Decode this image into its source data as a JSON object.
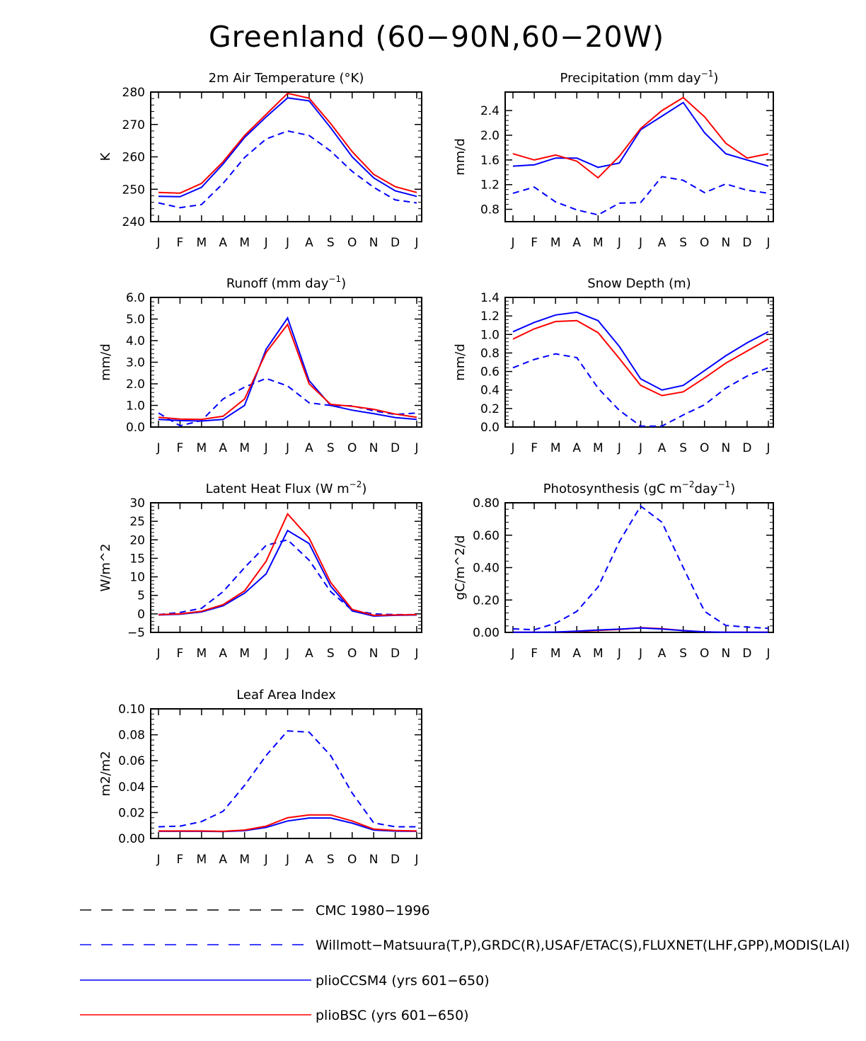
{
  "title": "Greenland (60−90N,60−20W)",
  "chart_data": [
    {
      "id": "temp",
      "type": "line",
      "title": "2m Air Temperature (°K)",
      "ylabel": "K",
      "ylim": [
        240,
        280
      ],
      "yticks": [
        240,
        250,
        260,
        270,
        280
      ],
      "yticklabels": [
        "240",
        "250",
        "260",
        "270",
        "280"
      ],
      "categories": [
        "J",
        "F",
        "M",
        "A",
        "M",
        "J",
        "J",
        "A",
        "S",
        "O",
        "N",
        "D",
        "J"
      ],
      "series": [
        {
          "name": "Willmott-Matsuura(T,P),GRDC(R),USAF/ETAC(S),FLUXNET(LHF,GPP),MODIS(LAI)",
          "style": "dashed",
          "color": "#0000ff",
          "values": [
            245.8,
            244.3,
            245.3,
            251.8,
            259.8,
            265.5,
            268.0,
            266.6,
            261.8,
            255.5,
            250.6,
            246.7,
            245.8
          ]
        },
        {
          "name": "plioCCSM4 (yrs 601−650)",
          "style": "solid",
          "color": "#0000ff",
          "values": [
            247.8,
            247.7,
            250.6,
            257.8,
            266.0,
            272.3,
            278.2,
            277.3,
            269.0,
            260.0,
            253.5,
            249.5,
            247.8
          ]
        },
        {
          "name": "plioBSC (yrs 601−650)",
          "style": "solid",
          "color": "#ff0000",
          "values": [
            249.0,
            248.8,
            251.8,
            258.5,
            266.6,
            273.1,
            279.6,
            278.1,
            270.3,
            261.6,
            254.6,
            250.8,
            249.0
          ]
        }
      ]
    },
    {
      "id": "precip",
      "type": "line",
      "title": "Precipitation (mm day",
      "title_sup": "−1",
      "title_end": ")",
      "ylabel": "mm/d",
      "ylim": [
        0.6,
        2.7
      ],
      "yticks": [
        0.8,
        1.2,
        1.6,
        2.0,
        2.4
      ],
      "yticklabels": [
        "0.8",
        "1.2",
        "1.6",
        "2.0",
        "2.4"
      ],
      "categories": [
        "J",
        "F",
        "M",
        "A",
        "M",
        "J",
        "J",
        "A",
        "S",
        "O",
        "N",
        "D",
        "J"
      ],
      "series": [
        {
          "name": "Willmott-Matsuura",
          "style": "dashed",
          "color": "#0000ff",
          "values": [
            1.06,
            1.16,
            0.92,
            0.79,
            0.71,
            0.9,
            0.91,
            1.33,
            1.27,
            1.07,
            1.21,
            1.11,
            1.06
          ]
        },
        {
          "name": "plioCCSM4",
          "style": "solid",
          "color": "#0000ff",
          "values": [
            1.5,
            1.52,
            1.63,
            1.63,
            1.48,
            1.55,
            2.09,
            2.31,
            2.53,
            2.04,
            1.7,
            1.6,
            1.5
          ]
        },
        {
          "name": "plioBSC",
          "style": "solid",
          "color": "#ff0000",
          "values": [
            1.7,
            1.6,
            1.68,
            1.58,
            1.31,
            1.66,
            2.11,
            2.4,
            2.61,
            2.3,
            1.87,
            1.63,
            1.7
          ]
        }
      ]
    },
    {
      "id": "runoff",
      "type": "line",
      "title": "Runoff (mm day",
      "title_sup": "−1",
      "title_end": ")",
      "ylabel": "mm/d",
      "ylim": [
        0,
        6
      ],
      "yticks": [
        0,
        1,
        2,
        3,
        4,
        5,
        6
      ],
      "yticklabels": [
        "0.0",
        "1.0",
        "2.0",
        "3.0",
        "4.0",
        "5.0",
        "6.0"
      ],
      "categories": [
        "J",
        "F",
        "M",
        "A",
        "M",
        "J",
        "J",
        "A",
        "S",
        "O",
        "N",
        "D",
        "J"
      ],
      "series": [
        {
          "name": "GRDC",
          "style": "dashed",
          "color": "#0000ff",
          "values": [
            0.65,
            0.06,
            0.3,
            1.3,
            1.85,
            2.25,
            1.9,
            1.12,
            1.0,
            0.98,
            0.75,
            0.58,
            0.65
          ]
        },
        {
          "name": "plioCCSM4",
          "style": "solid",
          "color": "#0000ff",
          "values": [
            0.35,
            0.3,
            0.28,
            0.35,
            1.0,
            3.6,
            5.05,
            2.15,
            1.0,
            0.78,
            0.62,
            0.44,
            0.35
          ]
        },
        {
          "name": "plioBSC",
          "style": "solid",
          "color": "#ff0000",
          "values": [
            0.45,
            0.37,
            0.35,
            0.5,
            1.3,
            3.45,
            4.75,
            2.0,
            1.05,
            0.96,
            0.82,
            0.6,
            0.45
          ]
        }
      ]
    },
    {
      "id": "snow",
      "type": "line",
      "title": "Snow Depth (m)",
      "ylabel": "mm/d",
      "ylim": [
        0,
        1.4
      ],
      "yticks": [
        0,
        0.2,
        0.4,
        0.6,
        0.8,
        1.0,
        1.2,
        1.4
      ],
      "yticklabels": [
        "0.0",
        "0.2",
        "0.4",
        "0.6",
        "0.8",
        "1.0",
        "1.2",
        "1.4"
      ],
      "categories": [
        "J",
        "F",
        "M",
        "A",
        "M",
        "J",
        "J",
        "A",
        "S",
        "O",
        "N",
        "D",
        "J"
      ],
      "series": [
        {
          "name": "CMC 1980−1996",
          "style": "dashed",
          "color": "#000000",
          "values": [
            0.0,
            0.0,
            0.0,
            0.0,
            0.0,
            0.0,
            0.0,
            0.0,
            0.0,
            0.0,
            0.0,
            0.0,
            0.0
          ]
        },
        {
          "name": "USAF/ETAC",
          "style": "dashed",
          "color": "#0000ff",
          "values": [
            0.64,
            0.73,
            0.79,
            0.75,
            0.42,
            0.18,
            0.01,
            0.01,
            0.13,
            0.24,
            0.42,
            0.55,
            0.64
          ]
        },
        {
          "name": "plioCCSM4",
          "style": "solid",
          "color": "#0000ff",
          "values": [
            1.03,
            1.13,
            1.21,
            1.24,
            1.15,
            0.87,
            0.52,
            0.4,
            0.45,
            0.61,
            0.77,
            0.91,
            1.03
          ]
        },
        {
          "name": "plioBSC",
          "style": "solid",
          "color": "#ff0000",
          "values": [
            0.95,
            1.06,
            1.14,
            1.15,
            1.02,
            0.74,
            0.45,
            0.34,
            0.38,
            0.53,
            0.69,
            0.82,
            0.95
          ]
        }
      ]
    },
    {
      "id": "lhf",
      "type": "line",
      "title": "Latent Heat Flux (W m",
      "title_sup": "−2",
      "title_end": ")",
      "ylabel": "W/m^2",
      "ylim": [
        -5,
        30
      ],
      "yticks": [
        -5,
        0,
        5,
        10,
        15,
        20,
        25,
        30
      ],
      "yticklabels": [
        "−5",
        "0",
        "5",
        "10",
        "15",
        "20",
        "25",
        "30"
      ],
      "categories": [
        "J",
        "F",
        "M",
        "A",
        "M",
        "J",
        "J",
        "A",
        "S",
        "O",
        "N",
        "D",
        "J"
      ],
      "series": [
        {
          "name": "FLUXNET",
          "style": "dashed",
          "color": "#0000ff",
          "values": [
            -0.2,
            0.4,
            1.5,
            6.0,
            12.5,
            18.5,
            20.0,
            14.5,
            6.0,
            1.0,
            0.0,
            -0.2,
            -0.2
          ]
        },
        {
          "name": "plioCCSM4",
          "style": "solid",
          "color": "#0000ff",
          "values": [
            -0.3,
            -0.1,
            0.5,
            2.2,
            5.6,
            10.8,
            22.5,
            19.0,
            7.5,
            0.8,
            -0.6,
            -0.4,
            -0.3
          ]
        },
        {
          "name": "plioBSC",
          "style": "solid",
          "color": "#ff0000",
          "values": [
            -0.2,
            0.0,
            0.7,
            2.5,
            6.2,
            14.2,
            27.0,
            20.5,
            8.5,
            1.2,
            -0.4,
            -0.3,
            -0.2
          ]
        }
      ]
    },
    {
      "id": "gpp",
      "type": "line",
      "title": "Photosynthesis (gC m",
      "title_sup": "−2",
      "title_mid": "day",
      "title_sup2": "−1",
      "title_end": ")",
      "ylabel": "gC/m^2/d",
      "ylim": [
        0,
        0.8
      ],
      "yticks": [
        0,
        0.2,
        0.4,
        0.6,
        0.8
      ],
      "yticklabels": [
        "0.00",
        "0.20",
        "0.40",
        "0.60",
        "0.80"
      ],
      "categories": [
        "J",
        "F",
        "M",
        "A",
        "M",
        "J",
        "J",
        "A",
        "S",
        "O",
        "N",
        "D",
        "J"
      ],
      "series": [
        {
          "name": "FLUXNET",
          "style": "dashed",
          "color": "#0000ff",
          "values": [
            0.022,
            0.016,
            0.056,
            0.13,
            0.28,
            0.56,
            0.78,
            0.68,
            0.4,
            0.13,
            0.043,
            0.033,
            0.025
          ]
        },
        {
          "name": "plioBSC",
          "style": "solid",
          "color": "#ff0000",
          "values": [
            0.001,
            0.001,
            0.002,
            0.006,
            0.012,
            0.018,
            0.029,
            0.023,
            0.011,
            0.003,
            0.001,
            0.001,
            0.001
          ]
        },
        {
          "name": "plioCCSM4",
          "style": "solid",
          "color": "#0000ff",
          "values": [
            0.001,
            0.001,
            0.002,
            0.008,
            0.015,
            0.02,
            0.027,
            0.021,
            0.011,
            0.003,
            0.001,
            0.001,
            0.001
          ]
        }
      ]
    },
    {
      "id": "lai",
      "type": "line",
      "title": "Leaf Area Index",
      "ylabel": "m2/m2",
      "ylim": [
        0,
        0.1
      ],
      "yticks": [
        0,
        0.02,
        0.04,
        0.06,
        0.08,
        0.1
      ],
      "yticklabels": [
        "0.00",
        "0.02",
        "0.04",
        "0.06",
        "0.08",
        "0.10"
      ],
      "categories": [
        "J",
        "F",
        "M",
        "A",
        "M",
        "J",
        "J",
        "A",
        "S",
        "O",
        "N",
        "D",
        "J"
      ],
      "series": [
        {
          "name": "MODIS",
          "style": "dashed",
          "color": "#0000ff",
          "values": [
            0.009,
            0.0095,
            0.013,
            0.021,
            0.041,
            0.064,
            0.083,
            0.082,
            0.064,
            0.035,
            0.012,
            0.009,
            0.009
          ]
        },
        {
          "name": "plioCCSM4",
          "style": "solid",
          "color": "#0000ff",
          "values": [
            0.0055,
            0.0055,
            0.0055,
            0.0053,
            0.006,
            0.0085,
            0.0135,
            0.0158,
            0.0158,
            0.0118,
            0.0065,
            0.0057,
            0.0055
          ]
        },
        {
          "name": "plioBSC",
          "style": "solid",
          "color": "#ff0000",
          "values": [
            0.0058,
            0.0058,
            0.0058,
            0.0055,
            0.0065,
            0.0095,
            0.016,
            0.0182,
            0.0182,
            0.0135,
            0.0072,
            0.0062,
            0.0058
          ]
        }
      ]
    }
  ],
  "legend": [
    {
      "label": "CMC 1980−1996",
      "style": "dashed",
      "color": "#000000"
    },
    {
      "label": "Willmott−Matsuura(T,P),GRDC(R),USAF/ETAC(S),FLUXNET(LHF,GPP),MODIS(LAI)",
      "style": "dashed",
      "color": "#0000ff"
    },
    {
      "label": "plioCCSM4 (yrs 601−650)",
      "style": "solid",
      "color": "#0000ff"
    },
    {
      "label": "plioBSC (yrs 601−650)",
      "style": "solid",
      "color": "#ff0000"
    }
  ]
}
